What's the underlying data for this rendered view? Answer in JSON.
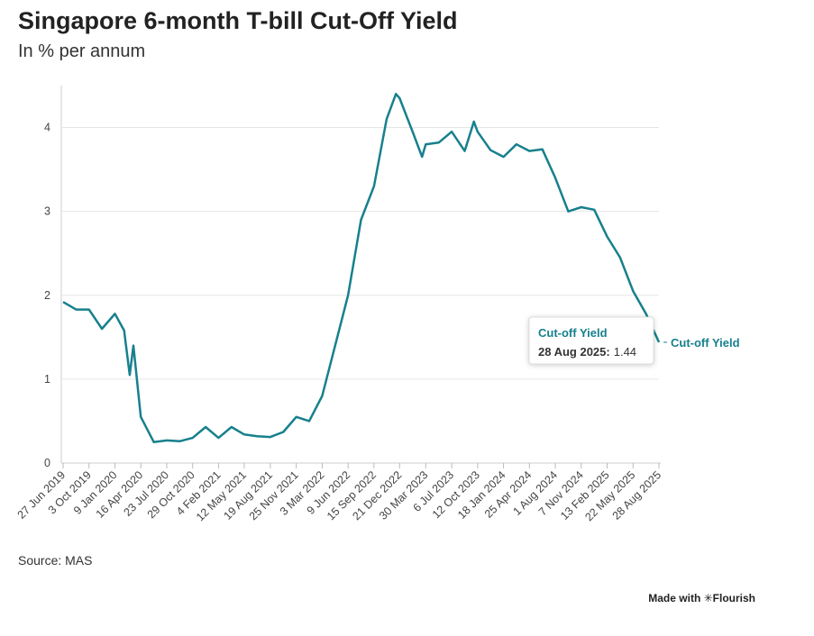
{
  "chart_data": {
    "type": "line",
    "title": "Singapore 6-month T-bill Cut-Off Yield",
    "subtitle": "In % per annum",
    "source": "Source: MAS",
    "credit": "Made with ✳Flourish",
    "x": [
      "2019-06-27",
      "2019-08-15",
      "2019-10-03",
      "2019-11-21",
      "2020-01-09",
      "2020-02-13",
      "2020-03-05",
      "2020-03-19",
      "2020-04-16",
      "2020-06-04",
      "2020-07-23",
      "2020-09-10",
      "2020-10-29",
      "2020-12-17",
      "2021-02-04",
      "2021-03-25",
      "2021-05-12",
      "2021-06-30",
      "2021-08-19",
      "2021-10-07",
      "2021-11-25",
      "2022-01-13",
      "2022-03-03",
      "2022-04-21",
      "2022-06-09",
      "2022-07-28",
      "2022-09-15",
      "2022-11-02",
      "2022-12-07",
      "2022-12-21",
      "2023-02-08",
      "2023-03-16",
      "2023-03-30",
      "2023-05-18",
      "2023-07-06",
      "2023-08-24",
      "2023-09-28",
      "2023-10-12",
      "2023-11-30",
      "2024-01-18",
      "2024-03-07",
      "2024-04-25",
      "2024-06-13",
      "2024-08-01",
      "2024-09-19",
      "2024-11-07",
      "2024-12-26",
      "2025-02-13",
      "2025-04-03",
      "2025-05-22",
      "2025-07-10",
      "2025-08-28"
    ],
    "series": [
      {
        "name": "Cut-off Yield",
        "color": "#17808d",
        "values": [
          1.92,
          1.83,
          1.83,
          1.6,
          1.78,
          1.58,
          1.05,
          1.4,
          0.55,
          0.25,
          0.27,
          0.26,
          0.3,
          0.43,
          0.3,
          0.43,
          0.34,
          0.32,
          0.31,
          0.37,
          0.55,
          0.5,
          0.8,
          1.4,
          2.0,
          2.9,
          3.3,
          4.1,
          4.4,
          4.35,
          3.95,
          3.65,
          3.8,
          3.82,
          3.95,
          3.72,
          4.07,
          3.95,
          3.73,
          3.65,
          3.8,
          3.72,
          3.74,
          3.4,
          3.0,
          3.05,
          3.02,
          2.7,
          2.45,
          2.05,
          1.78,
          1.44
        ]
      }
    ],
    "xlim": [
      "2019-06-27",
      "2025-08-28"
    ],
    "xticks": [
      {
        "value": "2019-06-27",
        "label": "27 Jun 2019"
      },
      {
        "value": "2019-10-03",
        "label": "3 Oct 2019"
      },
      {
        "value": "2020-01-09",
        "label": "9 Jan 2020"
      },
      {
        "value": "2020-04-16",
        "label": "16 Apr 2020"
      },
      {
        "value": "2020-07-23",
        "label": "23 Jul 2020"
      },
      {
        "value": "2020-10-29",
        "label": "29 Oct 2020"
      },
      {
        "value": "2021-02-04",
        "label": "4 Feb 2021"
      },
      {
        "value": "2021-05-12",
        "label": "12 May 2021"
      },
      {
        "value": "2021-08-19",
        "label": "19 Aug 2021"
      },
      {
        "value": "2021-11-25",
        "label": "25 Nov 2021"
      },
      {
        "value": "2022-03-03",
        "label": "3 Mar 2022"
      },
      {
        "value": "2022-06-09",
        "label": "9 Jun 2022"
      },
      {
        "value": "2022-09-15",
        "label": "15 Sep 2022"
      },
      {
        "value": "2022-12-21",
        "label": "21 Dec 2022"
      },
      {
        "value": "2023-03-30",
        "label": "30 Mar 2023"
      },
      {
        "value": "2023-07-06",
        "label": "6 Jul 2023"
      },
      {
        "value": "2023-10-12",
        "label": "12 Oct 2023"
      },
      {
        "value": "2024-01-18",
        "label": "18 Jan 2024"
      },
      {
        "value": "2024-04-25",
        "label": "25 Apr 2024"
      },
      {
        "value": "2024-08-01",
        "label": "1 Aug 2024"
      },
      {
        "value": "2024-11-07",
        "label": "7 Nov 2024"
      },
      {
        "value": "2025-02-13",
        "label": "13 Feb 2025"
      },
      {
        "value": "2025-05-22",
        "label": "22 May 2025"
      },
      {
        "value": "2025-08-28",
        "label": "28 Aug 2025"
      }
    ],
    "ylim": [
      0,
      4.5
    ],
    "yticks": [
      0,
      1,
      2,
      3,
      4
    ],
    "grid": true,
    "tooltip": {
      "label": "28 Aug 2025:"
    }
  }
}
